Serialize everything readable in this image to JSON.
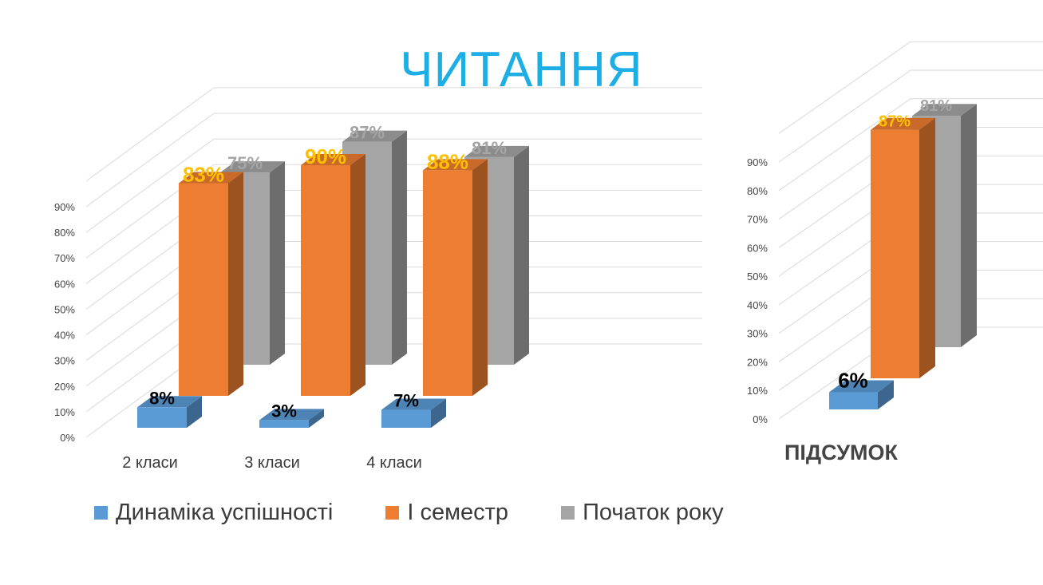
{
  "title": "ЧИТАННЯ",
  "colors": {
    "blue": "#5b9bd5",
    "orange": "#ed7d31",
    "gray": "#a5a5a5",
    "orange_label": "#ffc000",
    "gray_label": "#a5a5a5",
    "title": "#1eaee6"
  },
  "legend": [
    {
      "label": "Динаміка успішності",
      "color": "#5b9bd5"
    },
    {
      "label": "І семестр",
      "color": "#ed7d31"
    },
    {
      "label": "Початок року",
      "color": "#a5a5a5"
    }
  ],
  "chart_data": [
    {
      "type": "bar",
      "subtype": "3d-clustered-column",
      "categories": [
        "2 класи",
        "3 класи",
        "4 класи"
      ],
      "series": [
        {
          "name": "Динаміка успішності",
          "values": [
            8,
            3,
            7
          ],
          "labels": [
            "8%",
            "3%",
            "7%"
          ]
        },
        {
          "name": "І семестр",
          "values": [
            83,
            90,
            88
          ],
          "labels": [
            "83%",
            "90%",
            "88%"
          ]
        },
        {
          "name": "Початок року",
          "values": [
            75,
            87,
            81
          ],
          "labels": [
            "75%",
            "87%",
            "81%"
          ]
        }
      ],
      "ylim": [
        0,
        90
      ],
      "yticks": [
        "0%",
        "10%",
        "20%",
        "30%",
        "40%",
        "50%",
        "60%",
        "70%",
        "80%",
        "90%"
      ],
      "grid": true,
      "legend": "bottom"
    },
    {
      "type": "bar",
      "subtype": "3d-clustered-column",
      "categories": [
        "ПІДСУМОК"
      ],
      "series": [
        {
          "name": "Динаміка успішності",
          "values": [
            6
          ],
          "labels": [
            "6%"
          ]
        },
        {
          "name": "І семестр",
          "values": [
            87
          ],
          "labels": [
            "87%"
          ]
        },
        {
          "name": "Початок року",
          "values": [
            81
          ],
          "labels": [
            "81%"
          ]
        }
      ],
      "ylim": [
        0,
        90
      ],
      "yticks": [
        "0%",
        "10%",
        "20%",
        "30%",
        "40%",
        "50%",
        "60%",
        "70%",
        "80%",
        "90%"
      ],
      "grid": true
    }
  ]
}
